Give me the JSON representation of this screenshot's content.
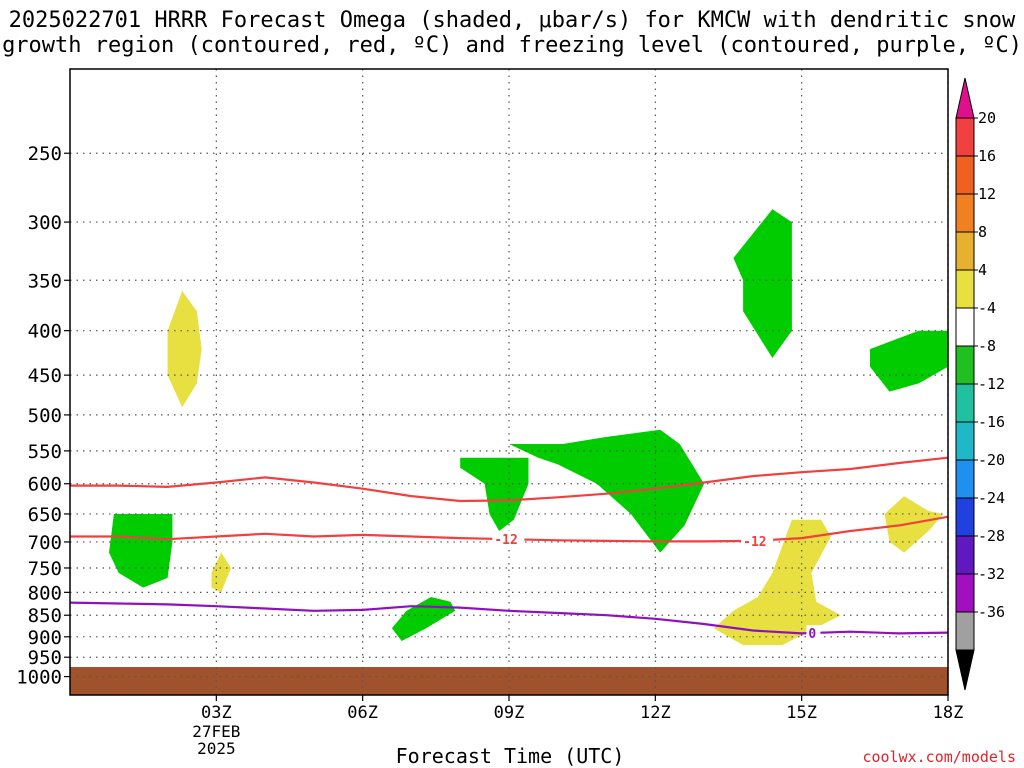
{
  "title_line1": "2025022701 HRRR Forecast Omega (shaded, μbar/s) for KMCW with dendritic snow",
  "title_line2": "growth region (contoured, red, ºC) and freezing level (contoured, purple, ºC)",
  "xlabel": "Forecast Time (UTC)",
  "credit": "coolwx.com/models",
  "chart_data": {
    "type": "heatmap",
    "x_axis": {
      "range_hours": [
        0,
        18
      ],
      "ticks": [
        {
          "hour": 3,
          "label": "03Z",
          "sub": [
            "27FEB",
            "2025"
          ]
        },
        {
          "hour": 6,
          "label": "06Z"
        },
        {
          "hour": 9,
          "label": "09Z"
        },
        {
          "hour": 12,
          "label": "12Z"
        },
        {
          "hour": 15,
          "label": "15Z"
        },
        {
          "hour": 18,
          "label": "18Z"
        }
      ]
    },
    "y_axis": {
      "scale": "log-pressure",
      "range_hPa": [
        200,
        1050
      ],
      "ticks": [
        250,
        300,
        350,
        400,
        450,
        500,
        550,
        600,
        650,
        700,
        750,
        800,
        850,
        900,
        950,
        1000
      ],
      "grid": true
    },
    "colorbar": {
      "labels": [
        "20",
        "16",
        "12",
        "8",
        "4",
        "-4",
        "-8",
        "-12",
        "-16",
        "-20",
        "-24",
        "-28",
        "-32",
        "-36"
      ],
      "colors": [
        "#f04040",
        "#f06020",
        "#f08020",
        "#e8b030",
        "#e8e040",
        "#ffffff",
        "#20c020",
        "#20c0a0",
        "#20b8c8",
        "#2090f0",
        "#2040e0",
        "#6018c0",
        "#a010c0",
        "#a0a0a0"
      ],
      "top_arrow_color": "#e0108c",
      "bottom_arrow_color": "#000000"
    },
    "ground_color": "#a0522d",
    "omega_regions": [
      {
        "value_class": "-4 to -8",
        "color": "#00cc00",
        "points": [
          [
            0.9,
            650
          ],
          [
            2.1,
            650
          ],
          [
            2.1,
            700
          ],
          [
            2,
            770
          ],
          [
            1.5,
            790
          ],
          [
            1,
            760
          ],
          [
            0.8,
            720
          ]
        ]
      },
      {
        "value_class": "-4 to -8",
        "color": "#00cc00",
        "points": [
          [
            8.0,
            560
          ],
          [
            9.4,
            560
          ],
          [
            9.4,
            600
          ],
          [
            9.1,
            660
          ],
          [
            8.8,
            680
          ],
          [
            8.6,
            650
          ],
          [
            8.5,
            600
          ],
          [
            8.0,
            575
          ]
        ]
      },
      {
        "value_class": "-4 to -8",
        "color": "#00cc00",
        "points": [
          [
            9.0,
            540
          ],
          [
            10.1,
            540
          ],
          [
            11.0,
            530
          ],
          [
            12.1,
            520
          ],
          [
            12.5,
            540
          ],
          [
            13.0,
            600
          ],
          [
            12.6,
            670
          ],
          [
            12.1,
            720
          ],
          [
            11.5,
            650
          ],
          [
            10.8,
            600
          ],
          [
            10.0,
            570
          ],
          [
            9.6,
            560
          ]
        ]
      },
      {
        "value_class": "-4 to -8",
        "color": "#00cc00",
        "points": [
          [
            13.6,
            330
          ],
          [
            14.4,
            290
          ],
          [
            14.8,
            300
          ],
          [
            14.8,
            400
          ],
          [
            14.4,
            430
          ],
          [
            13.8,
            380
          ],
          [
            13.8,
            350
          ]
        ]
      },
      {
        "value_class": "-4 to -8",
        "color": "#00cc00",
        "points": [
          [
            16.4,
            420
          ],
          [
            17.4,
            400
          ],
          [
            18.0,
            400
          ],
          [
            18.0,
            440
          ],
          [
            17.4,
            460
          ],
          [
            16.8,
            470
          ],
          [
            16.4,
            440
          ]
        ]
      },
      {
        "value_class": "-4 to -8",
        "color": "#00cc00",
        "points": [
          [
            6.9,
            840
          ],
          [
            7.4,
            810
          ],
          [
            7.8,
            820
          ],
          [
            7.9,
            840
          ],
          [
            7.3,
            880
          ],
          [
            6.8,
            910
          ],
          [
            6.6,
            880
          ]
        ]
      },
      {
        "value_class": "4 to 8",
        "color": "#e8e040",
        "points": [
          [
            2.0,
            400
          ],
          [
            2.3,
            360
          ],
          [
            2.6,
            380
          ],
          [
            2.7,
            420
          ],
          [
            2.6,
            460
          ],
          [
            2.3,
            490
          ],
          [
            2.0,
            450
          ]
        ]
      },
      {
        "value_class": "4 to 8",
        "color": "#e8e040",
        "points": [
          [
            2.9,
            760
          ],
          [
            3.1,
            720
          ],
          [
            3.3,
            750
          ],
          [
            3.1,
            800
          ],
          [
            2.9,
            790
          ]
        ]
      },
      {
        "value_class": "4 to 8",
        "color": "#e8e040",
        "points": [
          [
            13.6,
            840
          ],
          [
            14.1,
            810
          ],
          [
            14.4,
            760
          ],
          [
            14.8,
            660
          ],
          [
            15.4,
            660
          ],
          [
            15.6,
            690
          ],
          [
            15.2,
            760
          ],
          [
            15.3,
            820
          ],
          [
            15.8,
            850
          ],
          [
            14.6,
            920
          ],
          [
            13.8,
            920
          ],
          [
            13.2,
            880
          ]
        ]
      },
      {
        "value_class": "4 to 8",
        "color": "#e8e040",
        "points": [
          [
            16.7,
            650
          ],
          [
            17.1,
            620
          ],
          [
            17.6,
            645
          ],
          [
            17.9,
            650
          ],
          [
            17.6,
            680
          ],
          [
            17.1,
            720
          ],
          [
            16.8,
            700
          ]
        ]
      }
    ],
    "isotherms_red": [
      {
        "label": "-12",
        "label_at_hour": [
          8.7,
          13.8
        ],
        "points": [
          [
            0,
            690
          ],
          [
            1,
            690
          ],
          [
            2,
            695
          ],
          [
            3,
            690
          ],
          [
            4,
            685
          ],
          [
            5,
            690
          ],
          [
            6,
            687
          ],
          [
            7,
            690
          ],
          [
            8,
            693
          ],
          [
            9,
            695
          ],
          [
            10,
            697
          ],
          [
            11,
            698
          ],
          [
            12,
            699
          ],
          [
            13,
            699
          ],
          [
            14,
            698
          ],
          [
            15,
            693
          ],
          [
            16,
            680
          ],
          [
            17,
            670
          ],
          [
            18,
            655
          ]
        ]
      },
      {
        "label": "",
        "points": [
          [
            0,
            603
          ],
          [
            1,
            603
          ],
          [
            2,
            605
          ],
          [
            3,
            598
          ],
          [
            4,
            590
          ],
          [
            5,
            598
          ],
          [
            6,
            608
          ],
          [
            7,
            620
          ],
          [
            8,
            628
          ],
          [
            9,
            627
          ],
          [
            10,
            622
          ],
          [
            11,
            616
          ],
          [
            12,
            608
          ],
          [
            13,
            598
          ],
          [
            14,
            588
          ],
          [
            15,
            582
          ],
          [
            16,
            577
          ],
          [
            17,
            568
          ],
          [
            18,
            560
          ]
        ]
      }
    ],
    "freezing_level_purple": {
      "label": "0",
      "label_at_hour": 15.2,
      "points": [
        [
          0,
          822
        ],
        [
          1,
          824
        ],
        [
          2,
          826
        ],
        [
          3,
          830
        ],
        [
          4,
          835
        ],
        [
          5,
          840
        ],
        [
          6,
          838
        ],
        [
          7,
          830
        ],
        [
          8,
          833
        ],
        [
          9,
          840
        ],
        [
          10,
          845
        ],
        [
          11,
          850
        ],
        [
          12,
          858
        ],
        [
          13,
          870
        ],
        [
          14,
          885
        ],
        [
          15,
          892
        ],
        [
          16,
          888
        ],
        [
          17,
          892
        ],
        [
          18,
          890
        ]
      ]
    }
  }
}
